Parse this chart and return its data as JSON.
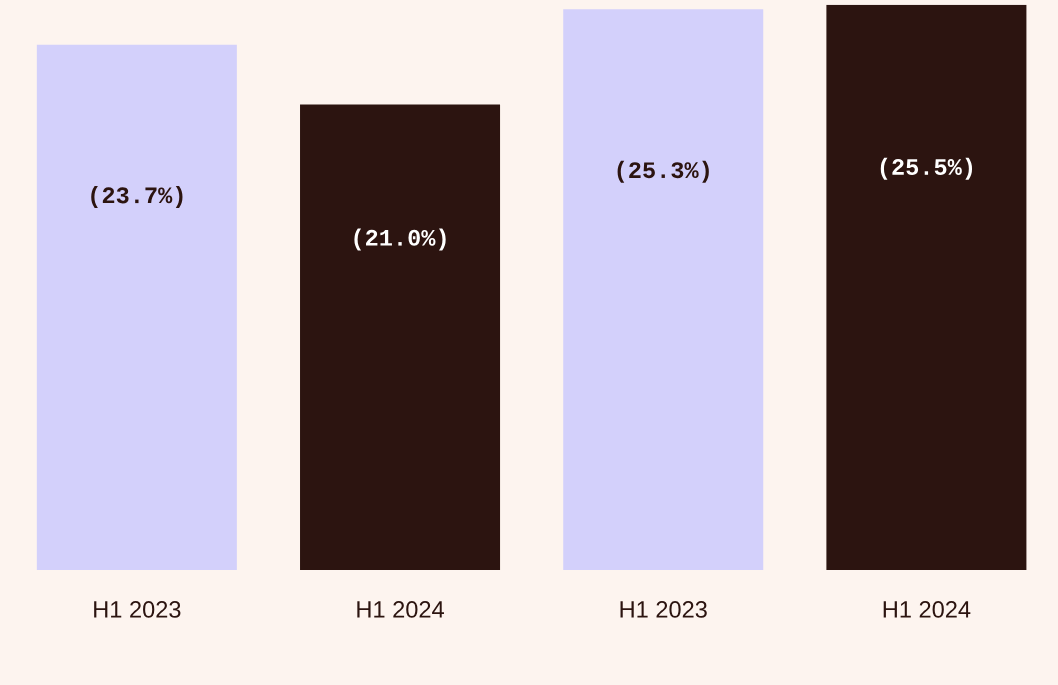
{
  "chart_data": {
    "type": "bar",
    "categories": [
      "H1 2023",
      "H1 2024",
      "H1 2023",
      "H1 2024"
    ],
    "values": [
      23.7,
      21.0,
      25.3,
      25.5
    ],
    "colors": [
      "#d3d0fb",
      "#2c1410",
      "#d3d0fb",
      "#2c1410"
    ],
    "value_labels": [
      "(23.7%)",
      "(21.0%)",
      "(25.3%)",
      "(25.5%)"
    ],
    "grid": false,
    "legend": false
  }
}
